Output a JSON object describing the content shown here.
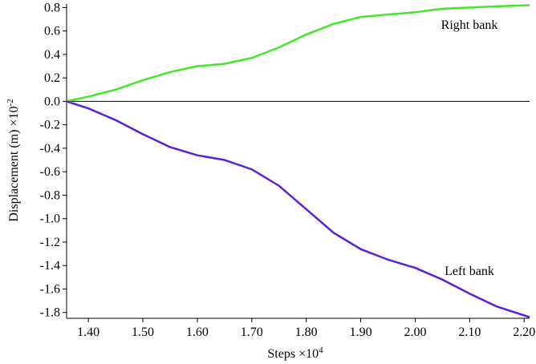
{
  "chart_data": {
    "type": "line",
    "ylabel": "Displacement (m) ×10",
    "ylabel_exponent": "-2",
    "xlabel": "Steps ×10",
    "xlabel_exponent": "4",
    "x": [
      1.36,
      1.4,
      1.45,
      1.5,
      1.55,
      1.6,
      1.65,
      1.7,
      1.75,
      1.8,
      1.85,
      1.9,
      1.95,
      2.0,
      2.05,
      2.1,
      2.15,
      2.21
    ],
    "series": [
      {
        "name": "Right bank",
        "color": "#44e52a",
        "values": [
          0.0,
          0.04,
          0.1,
          0.18,
          0.25,
          0.3,
          0.32,
          0.37,
          0.46,
          0.57,
          0.66,
          0.72,
          0.74,
          0.76,
          0.79,
          0.8,
          0.81,
          0.82
        ]
      },
      {
        "name": "Left bank",
        "color": "#5a1fe0",
        "values": [
          0.0,
          -0.06,
          -0.16,
          -0.28,
          -0.39,
          -0.46,
          -0.5,
          -0.58,
          -0.72,
          -0.92,
          -1.12,
          -1.26,
          -1.35,
          -1.42,
          -1.52,
          -1.64,
          -1.75,
          -1.84
        ]
      }
    ],
    "hline": 0,
    "xlim": [
      1.36,
      2.21
    ],
    "ylim": [
      -1.85,
      0.83
    ],
    "xticks": [
      {
        "value": 1.4,
        "label": "1.40"
      },
      {
        "value": 1.5,
        "label": "1.50"
      },
      {
        "value": 1.6,
        "label": "1.60"
      },
      {
        "value": 1.7,
        "label": "1.70"
      },
      {
        "value": 1.8,
        "label": "1.80"
      },
      {
        "value": 1.9,
        "label": "1.90"
      },
      {
        "value": 2.0,
        "label": "2.00"
      },
      {
        "value": 2.1,
        "label": "2.10"
      },
      {
        "value": 2.2,
        "label": "2.20"
      }
    ],
    "yticks": [
      0.8,
      0.6,
      0.4,
      0.2,
      {
        "value": 0,
        "label": "0.0"
      },
      -0.2,
      -0.4,
      -0.6,
      -0.8,
      {
        "value": -1,
        "label": "-1.0"
      },
      -1.2,
      -1.4,
      -1.6,
      -1.8
    ]
  }
}
